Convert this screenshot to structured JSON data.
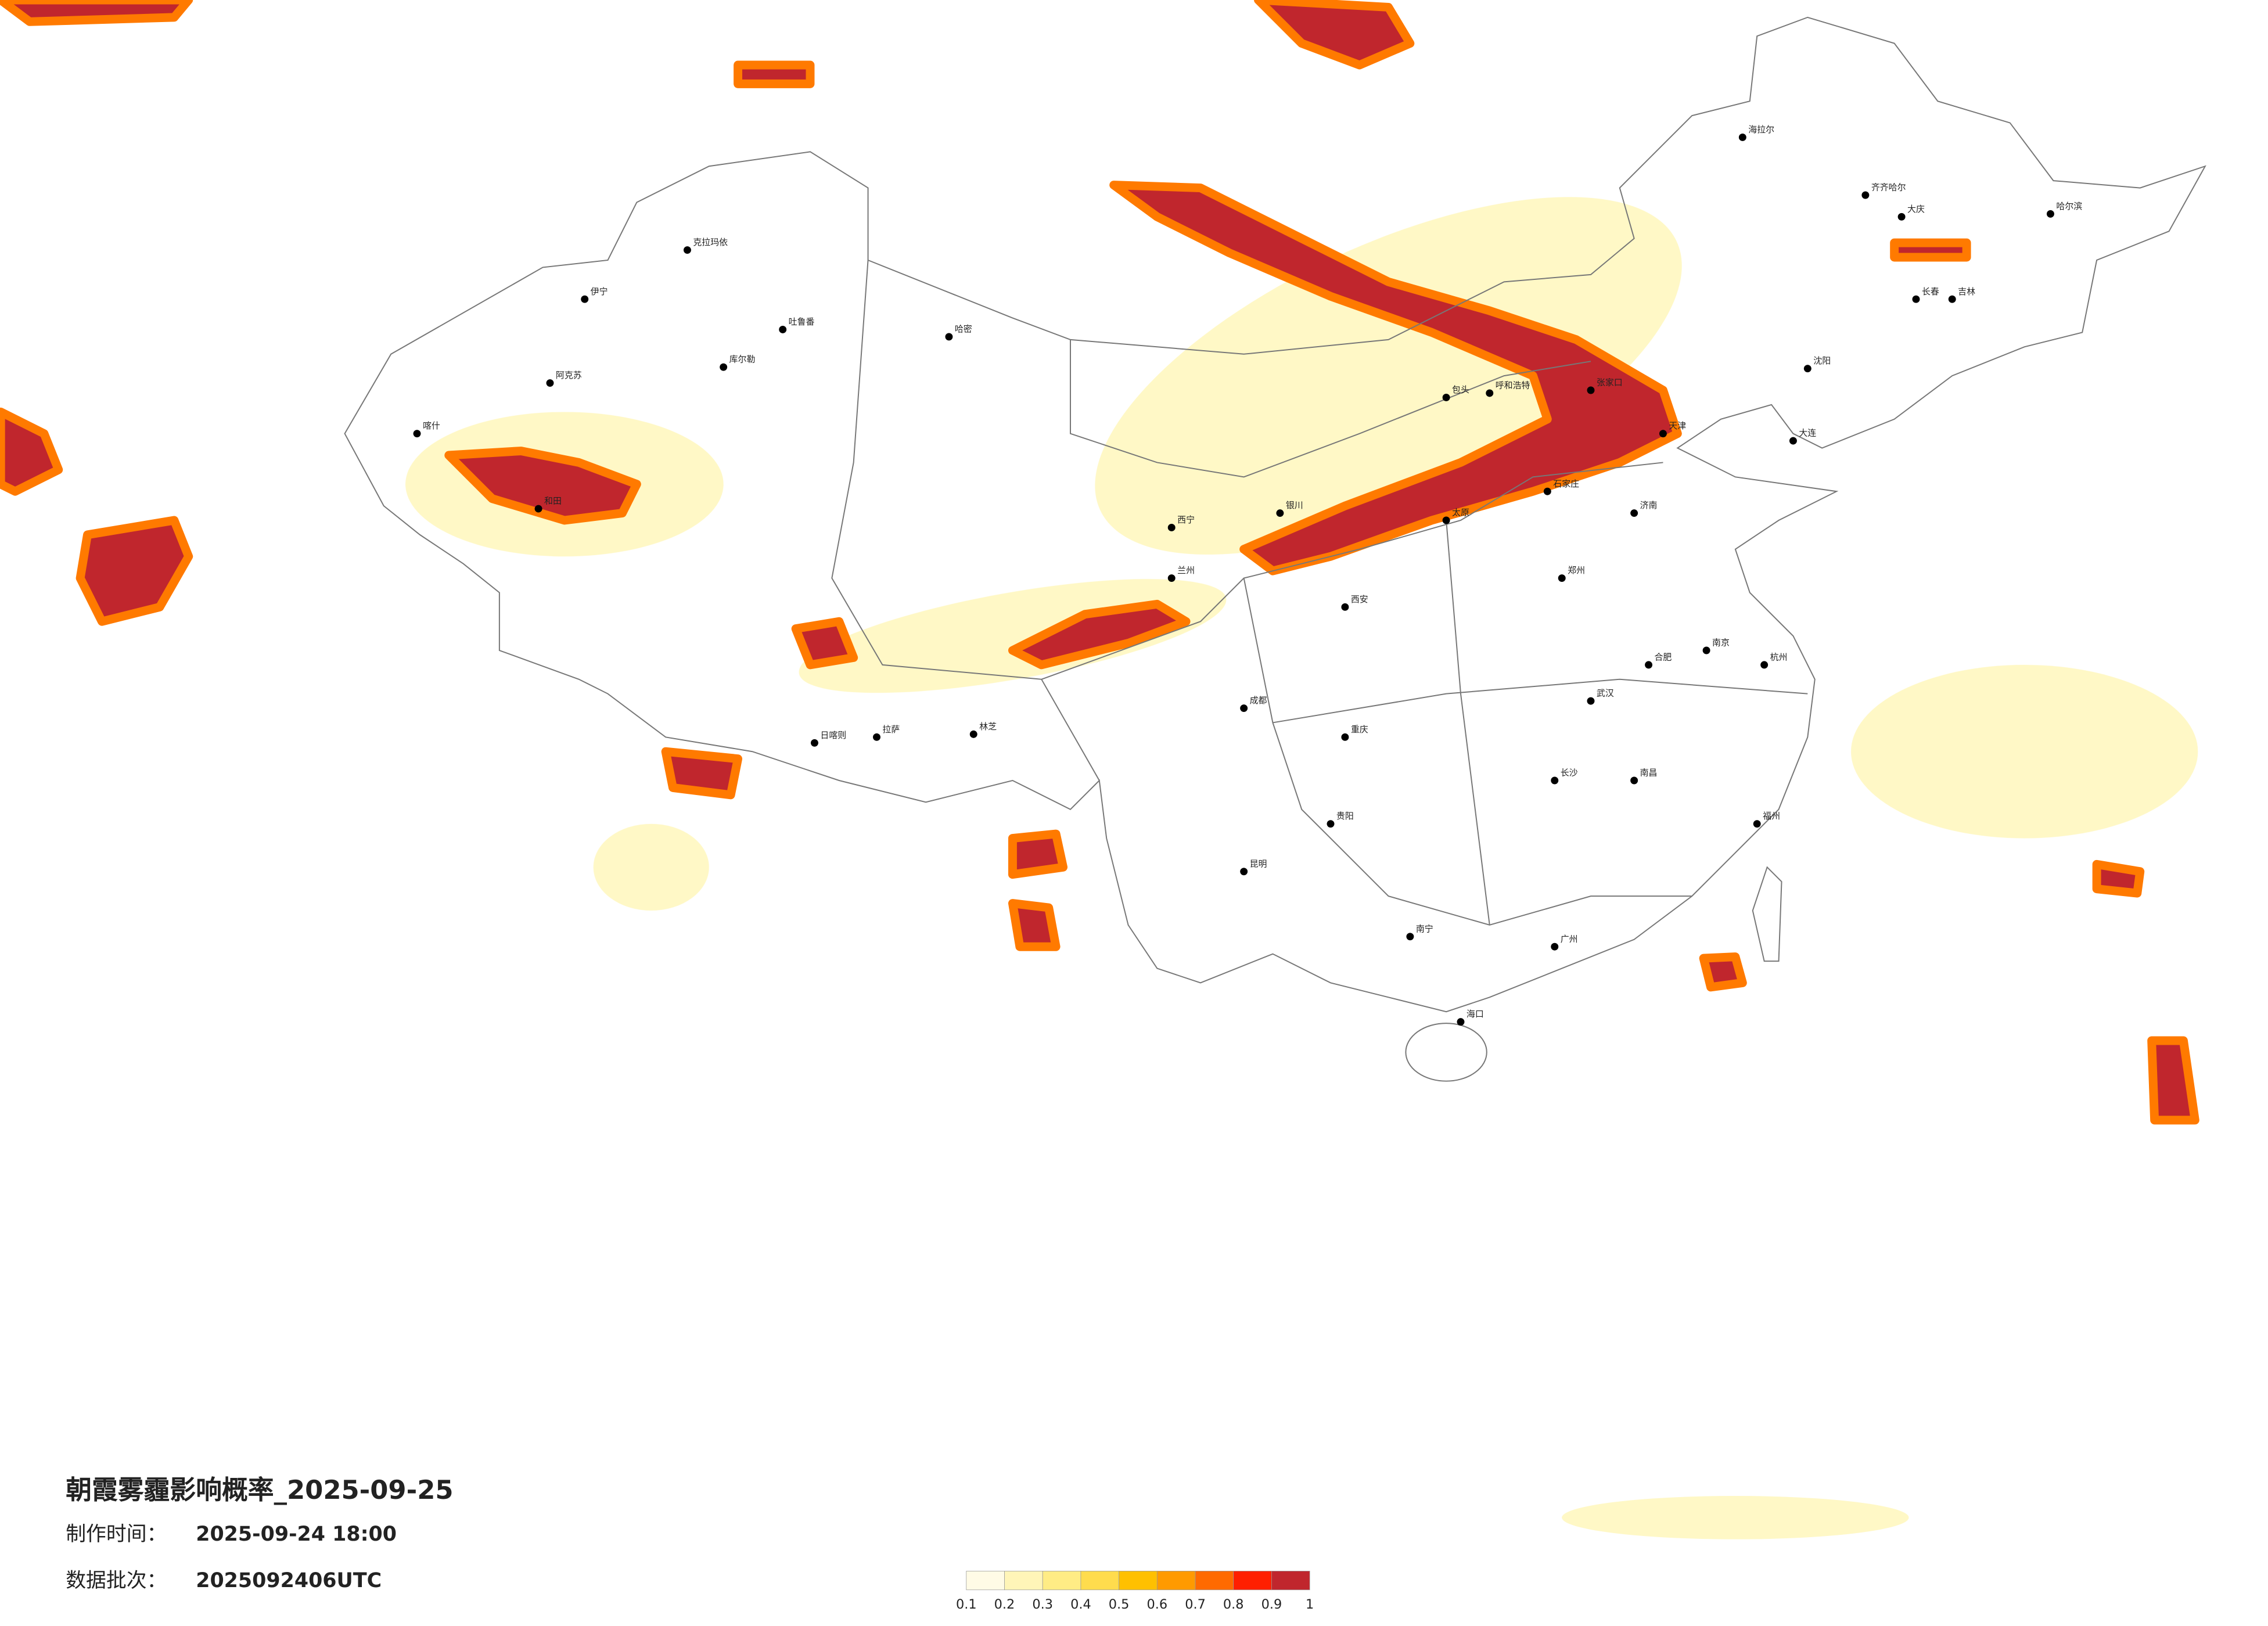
{
  "title": "朝霞雾霾影响概率_2025-09-25",
  "info": [
    {
      "label": "制作时间：",
      "value": "2025-09-24 18:00"
    },
    {
      "label": "数据批次：",
      "value": "2025092406UTC"
    }
  ],
  "legend": {
    "colors": [
      "#fffbe6",
      "#fff5b8",
      "#ffec85",
      "#ffdc4d",
      "#ffc000",
      "#ff9a00",
      "#ff6a00",
      "#ff1f00",
      "#c0262d"
    ],
    "ticks": [
      0.1,
      0.2,
      0.3,
      0.4,
      0.5,
      0.6,
      0.7,
      0.8,
      0.9,
      1
    ]
  },
  "cities": [
    "克拉玛依",
    "伊宁",
    "阿克苏",
    "和田",
    "喀什",
    "库尔勒",
    "哈密",
    "吐鲁番",
    "拉萨",
    "日喀则",
    "林芝",
    "呼和浩特",
    "包头",
    "张家口",
    "哈尔滨",
    "齐齐哈尔",
    "大庆",
    "长春",
    "吉林",
    "沈阳",
    "海拉尔",
    "银川",
    "兰州",
    "西宁",
    "成都",
    "重庆",
    "昆明",
    "贵阳",
    "南宁",
    "广州",
    "海口",
    "长沙",
    "武汉",
    "南昌",
    "福州",
    "杭州",
    "南京",
    "合肥",
    "郑州",
    "济南",
    "石家庄",
    "太原",
    "西安",
    "天津",
    "大连"
  ]
}
